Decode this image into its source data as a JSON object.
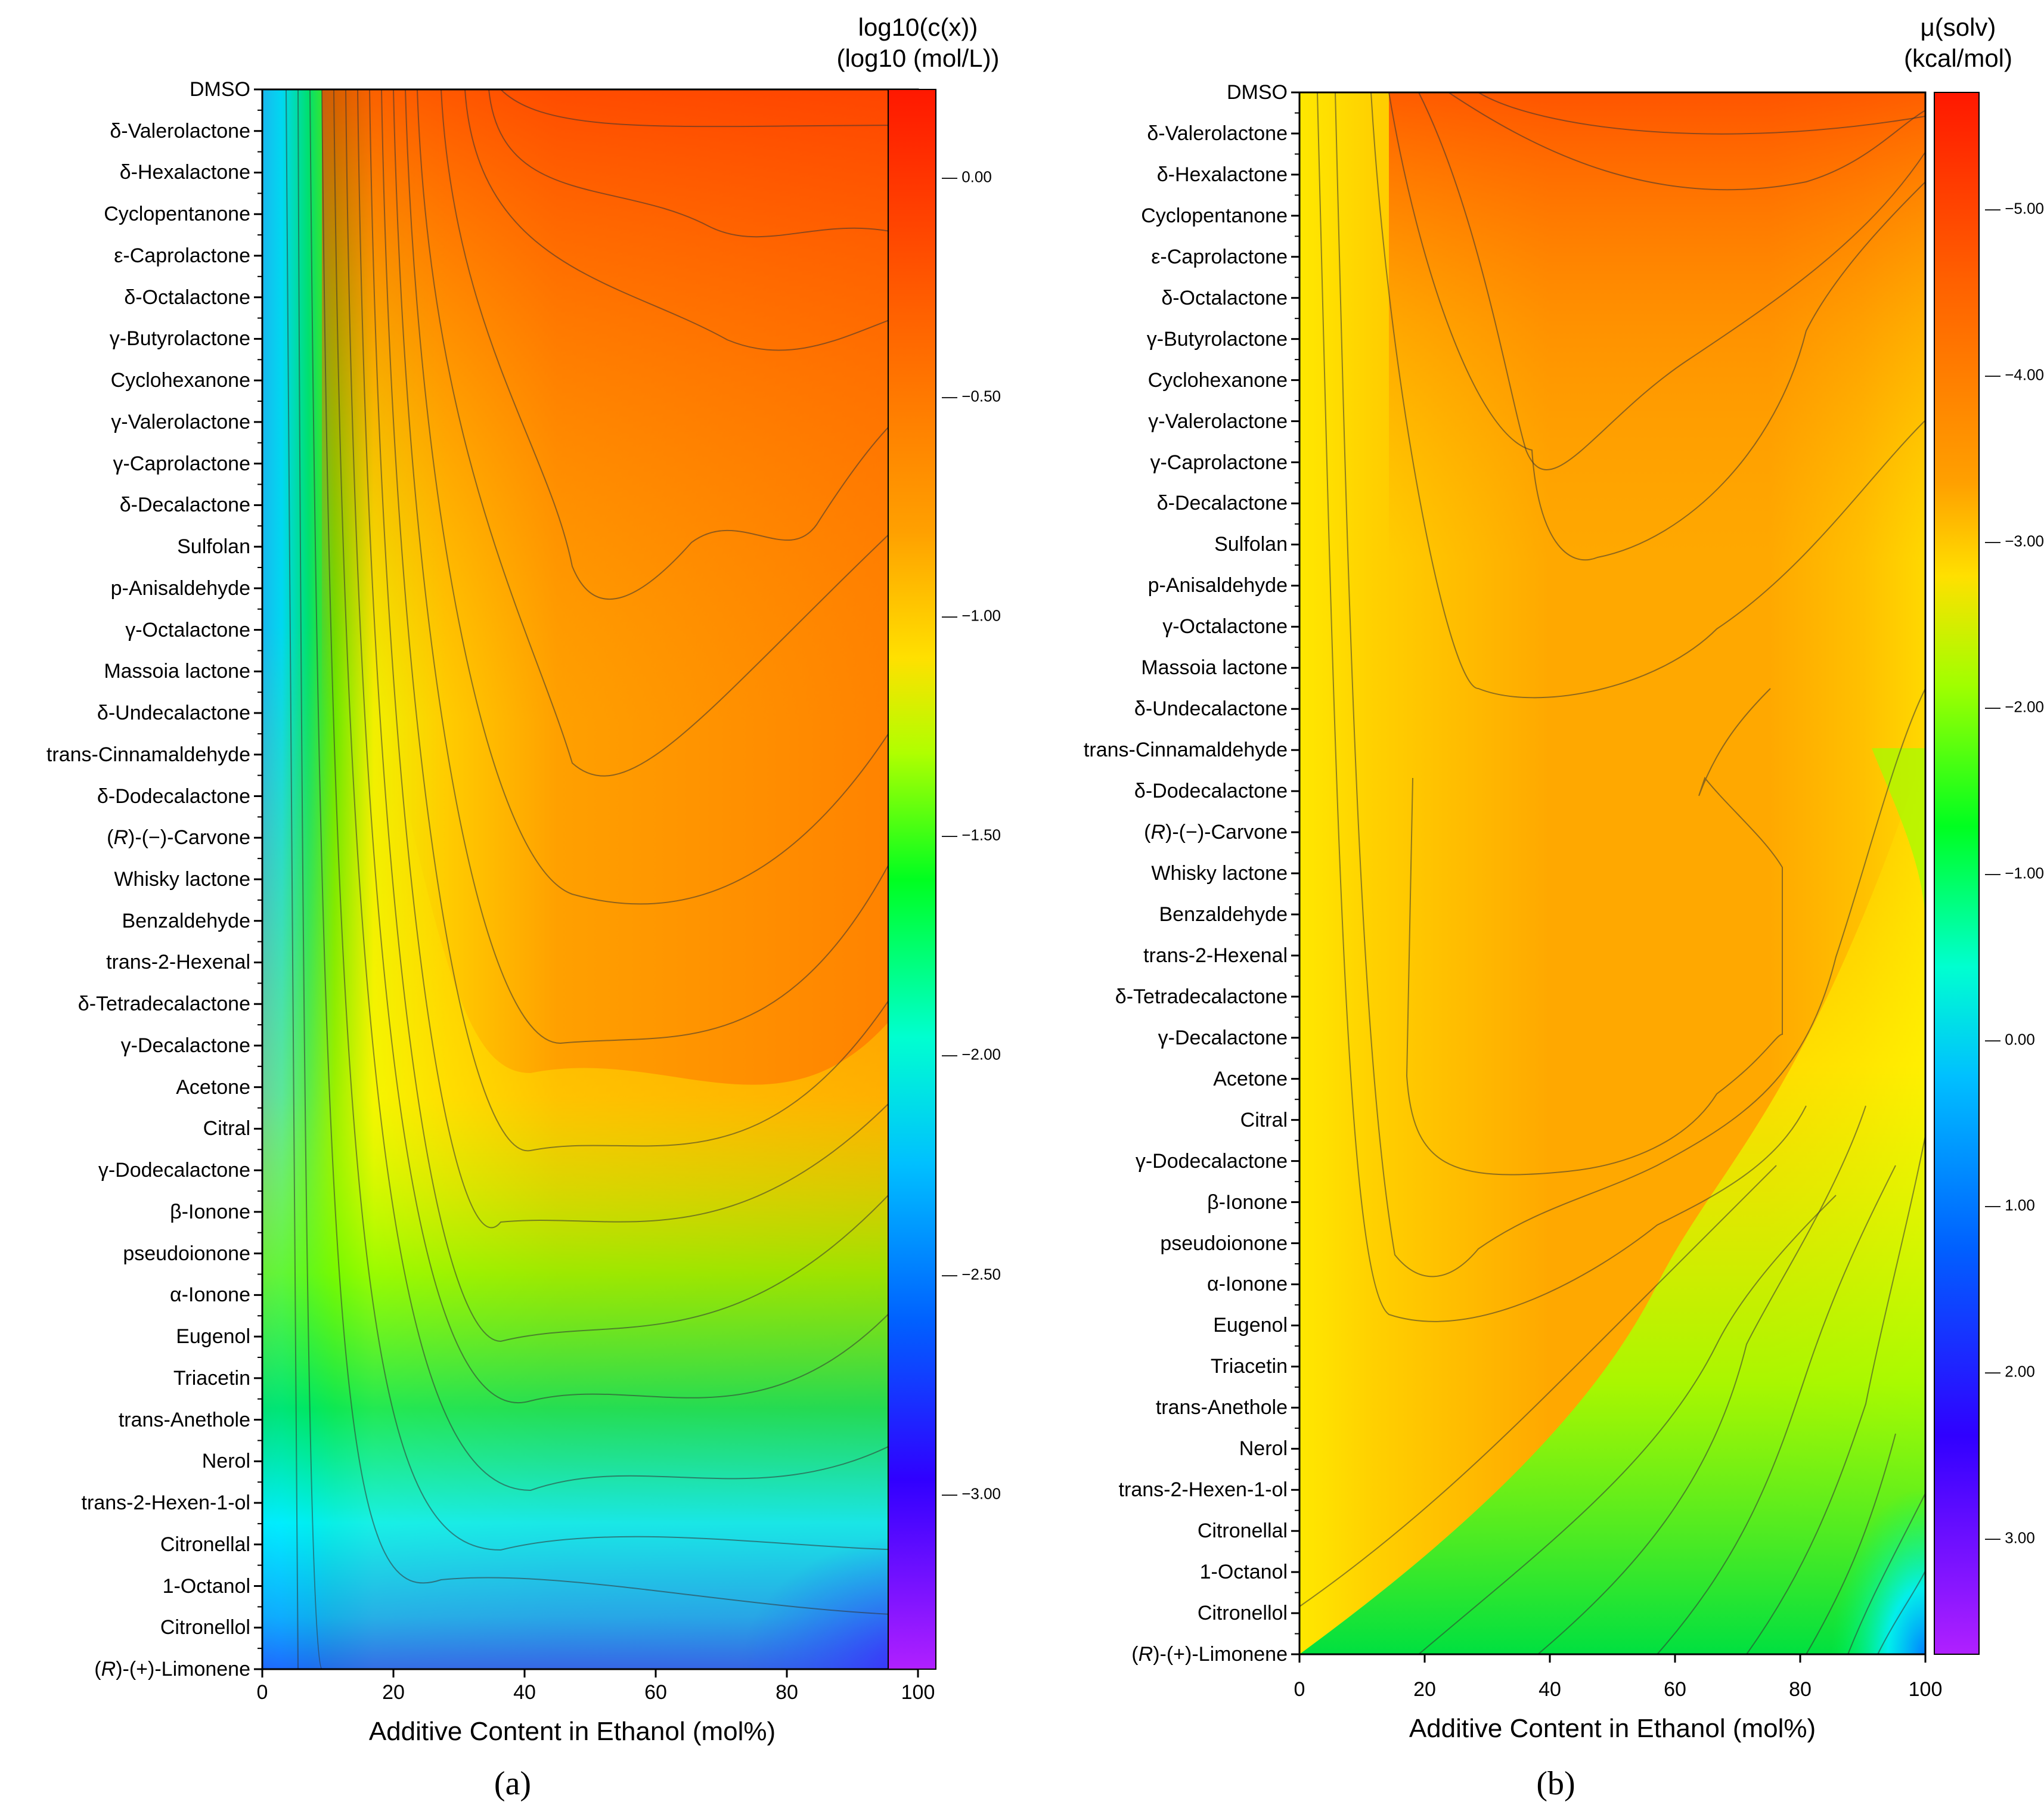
{
  "chart_data": [
    {
      "type": "heatmap",
      "panel_label": "(a)",
      "xlabel": "Additive Content in Ethanol (mol%)",
      "x_ticks": [
        "0",
        "20",
        "40",
        "60",
        "80",
        "100"
      ],
      "xlim": [
        0,
        100
      ],
      "colorbar_title_line1": "log10(c(x))",
      "colorbar_title_line2": "(log10 (mol/L))",
      "colorbar_ticks": [
        "0.00",
        "−0.50",
        "−1.00",
        "−1.50",
        "−2.00",
        "−2.50",
        "−3.00"
      ],
      "colorbar_values": [
        0.0,
        -0.5,
        -1.0,
        -1.5,
        -2.0,
        -2.5,
        -3.0
      ],
      "colorbar_range": [
        0.2,
        -3.4
      ],
      "yticks": [
        "DMSO",
        "δ-Valerolactone",
        "δ-Hexalactone",
        "Cyclopentanone",
        "ε-Caprolactone",
        "δ-Octalactone",
        "γ-Butyrolactone",
        "Cyclohexanone",
        "γ-Valerolactone",
        "γ-Caprolactone",
        "δ-Decalactone",
        "Sulfolan ",
        "p-Anisaldehyde",
        "γ-Octalactone",
        "Massoia lactone",
        "δ-Undecalactone",
        "trans-Cinnamaldehyde",
        "δ-Dodecalactone",
        "(R)-(−)-Carvone",
        "Whisky lactone",
        "Benzaldehyde",
        "trans-2-Hexenal",
        "δ-Tetradecalactone",
        "γ-Decalactone",
        "Acetone",
        "Citral",
        "γ-Dodecalactone",
        "β-Ionone",
        "pseudoionone",
        "α-Ionone",
        "Eugenol",
        "Triacetin",
        "trans-Anethole",
        "Nerol",
        "trans-2-Hexen-1-ol",
        "Citronellal",
        "1-Octanol",
        "Citronellol",
        "(R)-(+)-Limonene"
      ]
    },
    {
      "type": "heatmap",
      "panel_label": "(b)",
      "xlabel": "Additive Content in Ethanol (mol%)",
      "x_ticks": [
        "0",
        "20",
        "40",
        "60",
        "80",
        "100"
      ],
      "xlim": [
        0,
        100
      ],
      "colorbar_title_line1": "μ(solv)",
      "colorbar_title_line2": "(kcal/mol)",
      "colorbar_ticks": [
        "−5.00",
        "−4.00",
        "−3.00",
        "−2.00",
        "−1.00",
        "0.00",
        "1.00",
        "2.00",
        "3.00"
      ],
      "colorbar_values": [
        -5.0,
        -4.0,
        -3.0,
        -2.0,
        -1.0,
        0.0,
        1.0,
        2.0,
        3.0
      ],
      "colorbar_range": [
        -5.7,
        3.7
      ],
      "yticks": [
        "DMSO",
        "δ-Valerolactone",
        "δ-Hexalactone",
        "Cyclopentanone",
        "ε-Caprolactone",
        "δ-Octalactone",
        "γ-Butyrolactone",
        "Cyclohexanone",
        "γ-Valerolactone",
        "γ-Caprolactone",
        "δ-Decalactone",
        "Sulfolan ",
        "p-Anisaldehyde",
        "γ-Octalactone",
        "Massoia lactone",
        "δ-Undecalactone",
        "trans-Cinnamaldehyde",
        "δ-Dodecalactone",
        "(R)-(−)-Carvone",
        "Whisky lactone",
        "Benzaldehyde",
        "trans-2-Hexenal",
        "δ-Tetradecalactone",
        "γ-Decalactone",
        "Acetone",
        "Citral",
        "γ-Dodecalactone",
        "β-Ionone",
        "pseudoionone",
        "α-Ionone",
        "Eugenol",
        "Triacetin",
        "trans-Anethole",
        "Nerol",
        "trans-2-Hexen-1-ol",
        "Citronellal",
        "1-Octanol",
        "Citronellol",
        "(R)-(+)-Limonene"
      ]
    }
  ]
}
